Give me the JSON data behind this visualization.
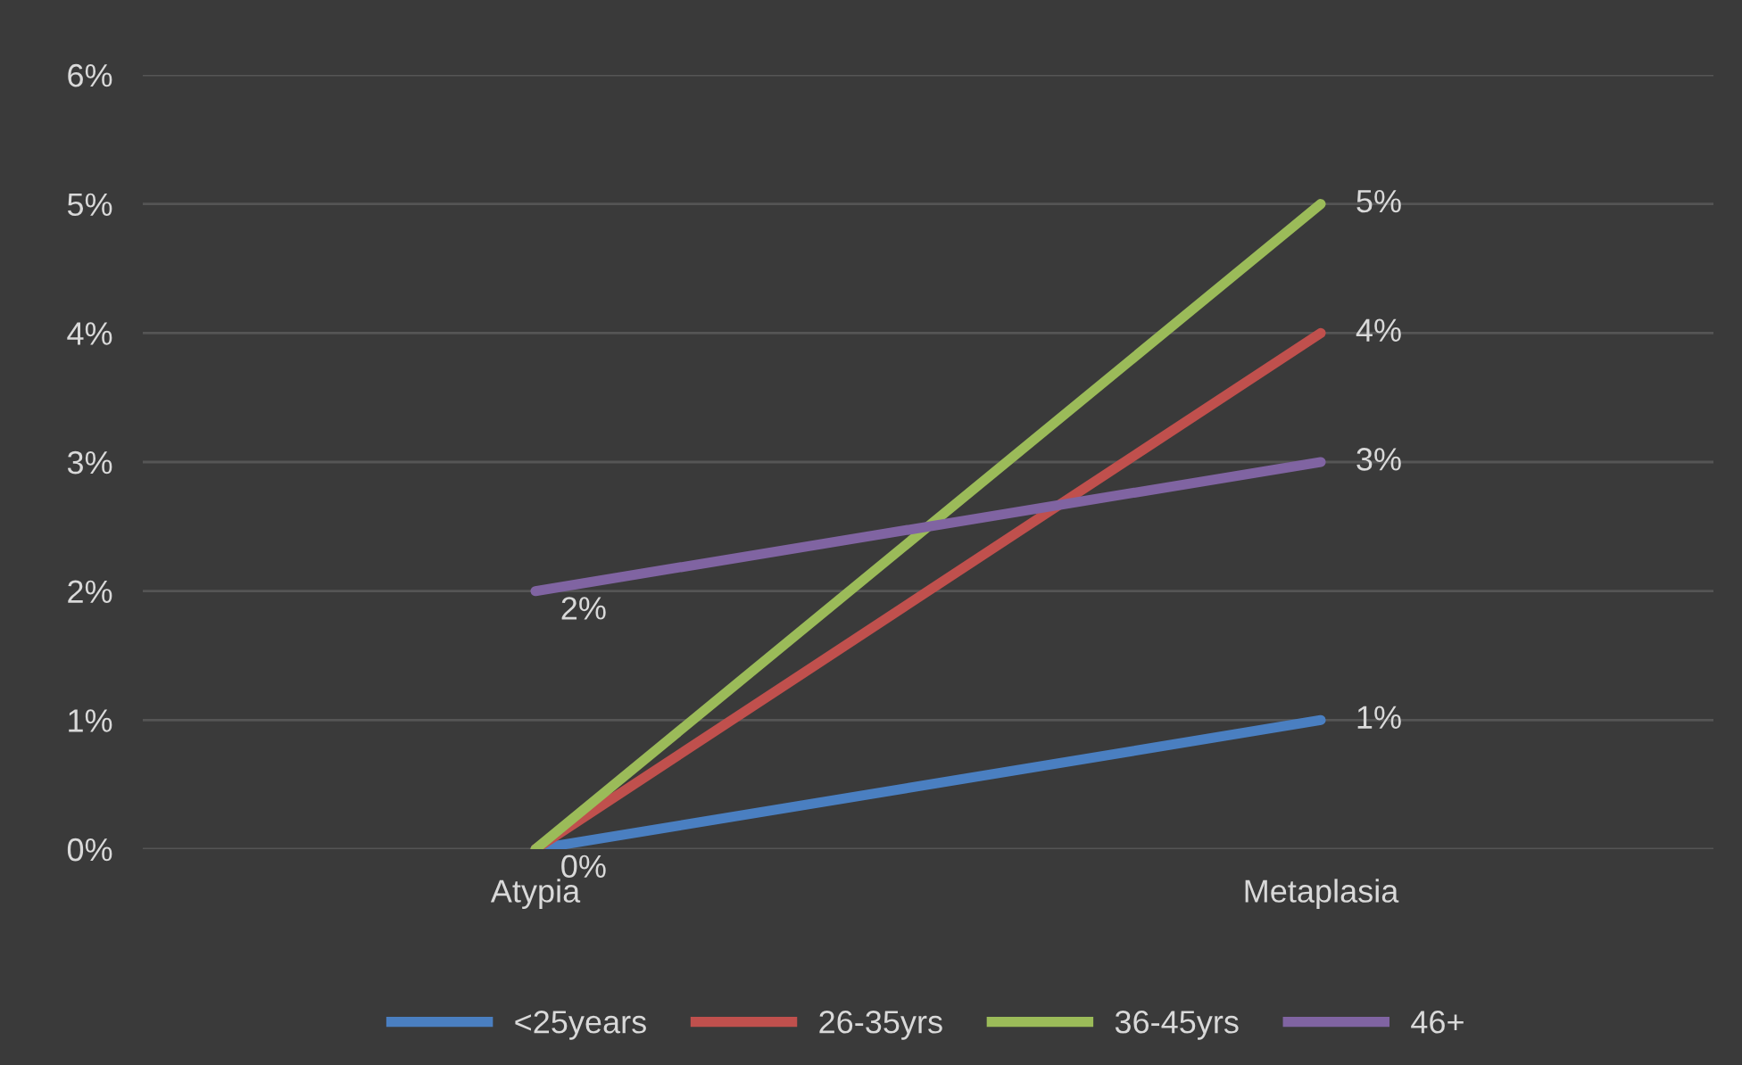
{
  "chart_data": {
    "type": "line",
    "categories": [
      "Atypia",
      "Metaplasia"
    ],
    "series": [
      {
        "name": "<25years",
        "color": "#4a7fc1",
        "values": [
          0,
          1
        ],
        "value_labels": [
          "0%",
          "1%"
        ]
      },
      {
        "name": "26-35yrs",
        "color": "#c0504d",
        "values": [
          0,
          4
        ],
        "value_labels": [
          null,
          "4%"
        ]
      },
      {
        "name": "36-45yrs",
        "color": "#9bbb59",
        "values": [
          0,
          5
        ],
        "value_labels": [
          null,
          "5%"
        ]
      },
      {
        "name": "46+",
        "color": "#8064a2",
        "values": [
          2,
          3
        ],
        "value_labels": [
          "2%",
          "3%"
        ]
      }
    ],
    "ylim": [
      0,
      6
    ],
    "yticks": [
      {
        "value": 0,
        "label": "0%"
      },
      {
        "value": 1,
        "label": "1%"
      },
      {
        "value": 2,
        "label": "2%"
      },
      {
        "value": 3,
        "label": "3%"
      },
      {
        "value": 4,
        "label": "4%"
      },
      {
        "value": 5,
        "label": "5%"
      },
      {
        "value": 6,
        "label": "6%"
      }
    ],
    "grid": "y",
    "legend": "bottom",
    "marker": "none",
    "line_style": "solid"
  }
}
